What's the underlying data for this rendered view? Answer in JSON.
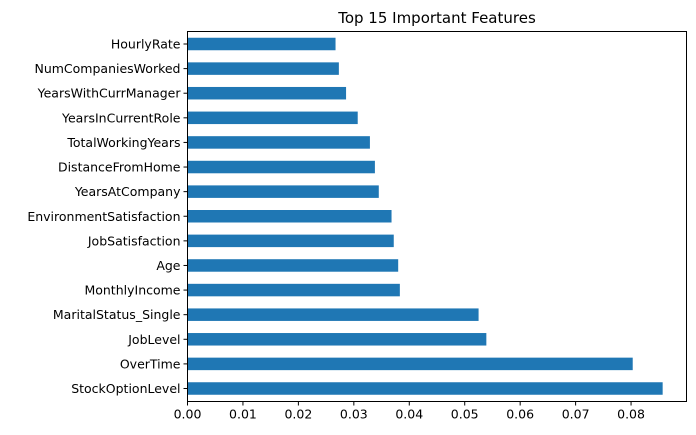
{
  "chart_data": {
    "type": "bar",
    "orientation": "horizontal",
    "title": "Top 15 Important Features",
    "xlabel": "",
    "ylabel": "",
    "categories": [
      "StockOptionLevel",
      "OverTime",
      "JobLevel",
      "MaritalStatus_Single",
      "MonthlyIncome",
      "Age",
      "JobSatisfaction",
      "EnvironmentSatisfaction",
      "YearsAtCompany",
      "DistanceFromHome",
      "TotalWorkingYears",
      "YearsInCurrentRole",
      "YearsWithCurrManager",
      "NumCompaniesWorked",
      "HourlyRate"
    ],
    "values": [
      0.0857,
      0.0803,
      0.0539,
      0.0525,
      0.0383,
      0.038,
      0.0372,
      0.0368,
      0.0345,
      0.0338,
      0.0329,
      0.0307,
      0.0286,
      0.0273,
      0.0267
    ],
    "xlim": [
      0,
      0.09
    ],
    "xticks": [
      "0.00",
      "0.01",
      "0.02",
      "0.03",
      "0.04",
      "0.05",
      "0.06",
      "0.07",
      "0.08"
    ],
    "bar_color": "#1f77b4",
    "grid": false,
    "legend": "none"
  }
}
